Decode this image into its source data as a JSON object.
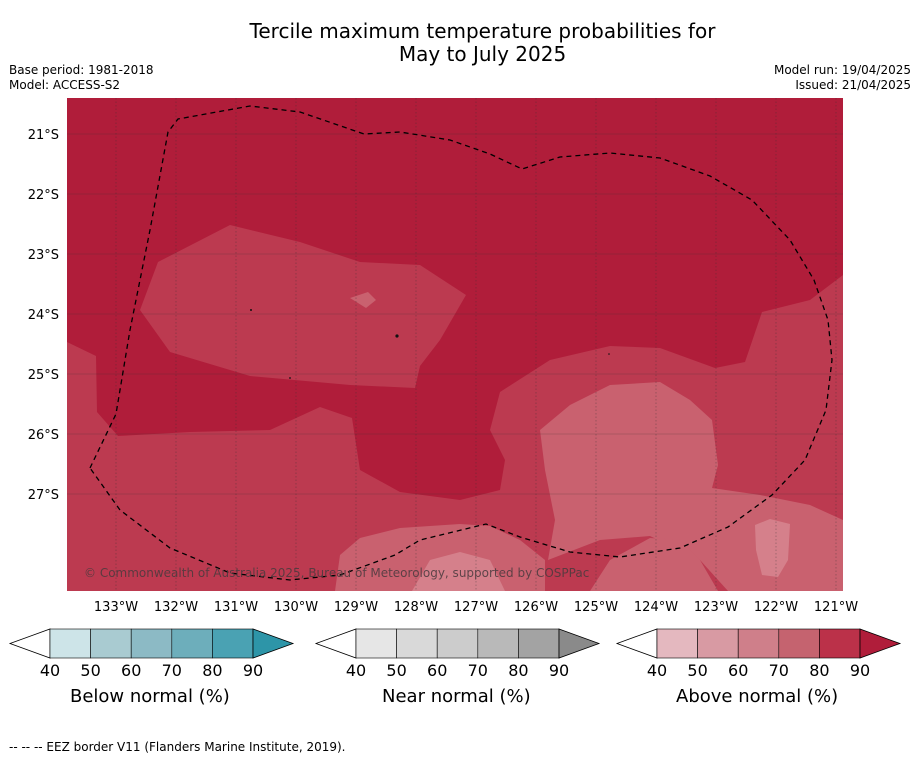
{
  "title_line1": "Tercile maximum temperature probabilities for",
  "title_line2": "May to July 2025",
  "base_period": "Base period: 1981-2018",
  "model": "Model: ACCESS-S2",
  "model_run": "Model run: 19/04/2025",
  "issued": "Issued: 21/04/2025",
  "copyright": "© Commonwealth of Australia 2025, Bureau of Meteorology, supported by COSPPac",
  "footnote": "--  --  -- EEZ border V11 (Flanders Marine Institute, 2019).",
  "lat_labels": [
    "21°S",
    "22°S",
    "23°S",
    "24°S",
    "25°S",
    "26°S",
    "27°S"
  ],
  "lon_labels": [
    "133°W",
    "132°W",
    "131°W",
    "130°W",
    "129°W",
    "128°W",
    "127°W",
    "126°W",
    "125°W",
    "124°W",
    "123°W",
    "122°W",
    "121°W"
  ],
  "legends": [
    {
      "title": "Below normal (%)",
      "ticks": [
        "40",
        "50",
        "60",
        "70",
        "80",
        "90"
      ],
      "colors": [
        "#cde4e8",
        "#a9cbd1",
        "#8cbac5",
        "#6daebb",
        "#4aa2b3",
        "#2d95a8"
      ]
    },
    {
      "title": "Near normal (%)",
      "ticks": [
        "40",
        "50",
        "60",
        "70",
        "80",
        "90"
      ],
      "colors": [
        "#e6e6e6",
        "#d9d9d9",
        "#cccccc",
        "#b9b9b9",
        "#a3a3a3",
        "#8a8a8a"
      ]
    },
    {
      "title": "Above normal (%)",
      "ticks": [
        "40",
        "50",
        "60",
        "70",
        "80",
        "90"
      ],
      "colors": [
        "#e4b8bf",
        "#d89aa3",
        "#cf7f8a",
        "#c5636f",
        "#bb3149",
        "#b01d3a"
      ]
    }
  ],
  "map_colors": {
    "above_80_90": "#b01d3a",
    "above_70_80": "#bc3a50",
    "above_60_70": "#c9616f",
    "above_50_60": "#d5808b"
  }
}
